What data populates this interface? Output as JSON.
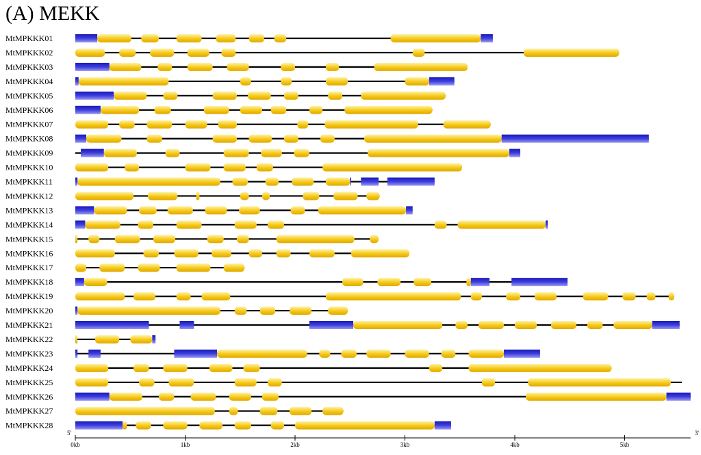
{
  "title": "(A) MEKK",
  "colors": {
    "utr": "#3434d6",
    "cds": "#f5c816",
    "intron": "#000000"
  },
  "axis": {
    "min_kb": 0,
    "max_kb": 5.6,
    "ticks": [
      {
        "value": 0,
        "label": "0kb"
      },
      {
        "value": 1,
        "label": "1kb"
      },
      {
        "value": 2,
        "label": "2kb"
      },
      {
        "value": 3,
        "label": "3kb"
      },
      {
        "value": 4,
        "label": "4kb"
      },
      {
        "value": 5,
        "label": "5kb"
      }
    ],
    "left_end": "5'",
    "right_end": "3'"
  },
  "genes": [
    {
      "name": "MtMPKKK01",
      "end": 3.8,
      "utr": [
        [
          0,
          0.2
        ],
        [
          3.69,
          3.8
        ]
      ],
      "cds": [
        [
          0.2,
          0.51
        ],
        [
          0.6,
          0.76
        ],
        [
          0.92,
          1.15
        ],
        [
          1.28,
          1.46
        ],
        [
          1.58,
          1.72
        ],
        [
          1.81,
          1.92
        ],
        [
          2.87,
          3.69
        ]
      ]
    },
    {
      "name": "MtMPKKK02",
      "end": 4.95,
      "utr": [],
      "cds": [
        [
          0,
          0.27
        ],
        [
          0.4,
          0.55
        ],
        [
          0.68,
          0.9
        ],
        [
          1.02,
          1.22
        ],
        [
          1.33,
          1.46
        ],
        [
          3.07,
          3.18
        ],
        [
          4.08,
          4.95
        ]
      ]
    },
    {
      "name": "MtMPKKK03",
      "end": 3.57,
      "utr": [
        [
          0,
          0.31
        ]
      ],
      "cds": [
        [
          0.31,
          0.6
        ],
        [
          0.75,
          0.88
        ],
        [
          1.02,
          1.25
        ],
        [
          1.38,
          1.58
        ],
        [
          1.87,
          2.0
        ],
        [
          2.28,
          2.4
        ],
        [
          2.72,
          3.57
        ]
      ]
    },
    {
      "name": "MtMPKKK04",
      "end": 3.45,
      "utr": [
        [
          0,
          0.03
        ],
        [
          3.22,
          3.45
        ]
      ],
      "cds": [
        [
          0.03,
          0.85
        ],
        [
          1.5,
          1.6
        ],
        [
          1.87,
          1.97
        ],
        [
          2.28,
          2.48
        ],
        [
          3.0,
          3.22
        ]
      ]
    },
    {
      "name": "MtMPKKK05",
      "end": 3.37,
      "utr": [
        [
          0,
          0.35
        ]
      ],
      "cds": [
        [
          0.35,
          0.65
        ],
        [
          0.8,
          0.93
        ],
        [
          1.25,
          1.47
        ],
        [
          1.57,
          1.78
        ],
        [
          1.9,
          2.03
        ],
        [
          2.3,
          2.43
        ],
        [
          2.6,
          3.37
        ]
      ]
    },
    {
      "name": "MtMPKKK06",
      "end": 3.25,
      "utr": [
        [
          0,
          0.23
        ]
      ],
      "cds": [
        [
          0.23,
          0.58
        ],
        [
          0.72,
          0.87
        ],
        [
          1.17,
          1.4
        ],
        [
          1.5,
          1.7
        ],
        [
          1.78,
          1.92
        ],
        [
          2.13,
          2.25
        ],
        [
          2.45,
          3.25
        ]
      ]
    },
    {
      "name": "MtMPKKK07",
      "end": 3.78,
      "utr": [],
      "cds": [
        [
          0,
          0.3
        ],
        [
          0.4,
          0.54
        ],
        [
          0.65,
          0.88
        ],
        [
          1.0,
          1.2
        ],
        [
          1.3,
          1.47
        ],
        [
          2.02,
          2.12
        ],
        [
          2.27,
          3.12
        ],
        [
          3.35,
          3.78
        ]
      ]
    },
    {
      "name": "MtMPKKK08",
      "end": 5.22,
      "utr": [
        [
          0,
          0.1
        ],
        [
          3.88,
          5.22
        ]
      ],
      "cds": [
        [
          0.1,
          0.42
        ],
        [
          0.65,
          0.79
        ],
        [
          1.25,
          1.47
        ],
        [
          1.58,
          1.79
        ],
        [
          1.9,
          2.03
        ],
        [
          2.23,
          2.36
        ],
        [
          2.63,
          3.88
        ]
      ]
    },
    {
      "name": "MtMPKKK09",
      "end": 4.05,
      "utr": [
        [
          0.05,
          0.26
        ],
        [
          3.95,
          4.05
        ]
      ],
      "cds": [
        [
          0.26,
          0.56
        ],
        [
          0.82,
          0.95
        ],
        [
          1.35,
          1.58
        ],
        [
          1.69,
          1.88
        ],
        [
          1.99,
          2.13
        ],
        [
          2.66,
          3.95
        ]
      ]
    },
    {
      "name": "MtMPKKK10",
      "end": 3.52,
      "utr": [],
      "cds": [
        [
          0,
          0.3
        ],
        [
          0.45,
          0.58
        ],
        [
          1.0,
          1.23
        ],
        [
          1.35,
          1.55
        ],
        [
          1.65,
          1.8
        ],
        [
          2.25,
          3.52
        ]
      ]
    },
    {
      "name": "MtMPKKK11",
      "end": 3.27,
      "utr": [
        [
          0,
          0.02
        ],
        [
          2.5,
          2.51
        ],
        [
          2.6,
          2.76
        ],
        [
          2.84,
          3.27
        ]
      ],
      "cds": [
        [
          0.02,
          1.32
        ],
        [
          1.43,
          1.57
        ],
        [
          1.73,
          1.85
        ],
        [
          1.97,
          2.17
        ],
        [
          2.28,
          2.5
        ]
      ]
    },
    {
      "name": "MtMPKKK12",
      "end": 2.77,
      "utr": [],
      "cds": [
        [
          0,
          0.53
        ],
        [
          0.66,
          0.93
        ],
        [
          1.1,
          1.13
        ],
        [
          1.5,
          1.58
        ],
        [
          1.7,
          1.77
        ],
        [
          2.07,
          2.22
        ],
        [
          2.35,
          2.57
        ],
        [
          2.65,
          2.77
        ]
      ]
    },
    {
      "name": "MtMPKKK13",
      "end": 3.07,
      "utr": [
        [
          0,
          0.17
        ],
        [
          3.01,
          3.07
        ]
      ],
      "cds": [
        [
          0.17,
          0.47
        ],
        [
          0.58,
          0.74
        ],
        [
          0.84,
          1.07
        ],
        [
          1.18,
          1.38
        ],
        [
          1.49,
          1.68
        ],
        [
          1.96,
          2.09
        ],
        [
          2.21,
          3.01
        ]
      ]
    },
    {
      "name": "MtMPKKK14",
      "end": 4.3,
      "utr": [
        [
          0,
          0.09
        ],
        [
          4.28,
          4.3
        ]
      ],
      "cds": [
        [
          0.09,
          0.41
        ],
        [
          0.57,
          0.71
        ],
        [
          0.92,
          1.15
        ],
        [
          1.45,
          1.65
        ],
        [
          1.75,
          1.9
        ],
        [
          3.27,
          3.38
        ],
        [
          3.48,
          4.28
        ]
      ]
    },
    {
      "name": "MtMPKKK15",
      "end": 2.76,
      "utr": [],
      "cds": [
        [
          0,
          0.02
        ],
        [
          0.12,
          0.22
        ],
        [
          0.36,
          0.59
        ],
        [
          0.71,
          0.91
        ],
        [
          1.2,
          1.35
        ],
        [
          1.47,
          1.58
        ],
        [
          1.83,
          2.54
        ],
        [
          2.68,
          2.76
        ]
      ]
    },
    {
      "name": "MtMPKKK16",
      "end": 3.04,
      "utr": [],
      "cds": [
        [
          0,
          0.36
        ],
        [
          0.62,
          0.76
        ],
        [
          0.9,
          1.12
        ],
        [
          1.24,
          1.42
        ],
        [
          1.58,
          1.7
        ],
        [
          1.83,
          1.96
        ],
        [
          2.13,
          2.36
        ],
        [
          2.51,
          3.04
        ]
      ]
    },
    {
      "name": "MtMPKKK17",
      "end": 1.54,
      "utr": [],
      "cds": [
        [
          0,
          0.1
        ],
        [
          0.22,
          0.45
        ],
        [
          0.57,
          0.77
        ],
        [
          0.92,
          1.23
        ],
        [
          1.35,
          1.54
        ]
      ]
    },
    {
      "name": "MtMPKKK18",
      "end": 4.48,
      "utr": [
        [
          0,
          0.08
        ],
        [
          3.6,
          3.77
        ],
        [
          3.97,
          4.48
        ]
      ],
      "cds": [
        [
          0.08,
          0.29
        ],
        [
          2.43,
          2.62
        ],
        [
          2.75,
          2.96
        ],
        [
          3.08,
          3.24
        ],
        [
          3.56,
          3.6
        ]
      ]
    },
    {
      "name": "MtMPKKK19",
      "end": 5.45,
      "utr": [],
      "cds": [
        [
          0,
          0.45
        ],
        [
          0.53,
          0.73
        ],
        [
          0.92,
          1.05
        ],
        [
          1.15,
          1.41
        ],
        [
          2.28,
          3.51
        ],
        [
          3.6,
          3.7
        ],
        [
          3.92,
          4.05
        ],
        [
          4.18,
          4.38
        ],
        [
          4.62,
          4.85
        ],
        [
          4.98,
          5.1
        ],
        [
          5.2,
          5.28
        ],
        [
          5.4,
          5.45
        ]
      ]
    },
    {
      "name": "MtMPKKK20",
      "end": 2.48,
      "utr": [
        [
          0,
          0.02
        ]
      ],
      "cds": [
        [
          0.02,
          1.32
        ],
        [
          1.45,
          1.56
        ],
        [
          1.68,
          1.82
        ],
        [
          1.95,
          2.15
        ],
        [
          2.3,
          2.48
        ]
      ]
    },
    {
      "name": "MtMPKKK21",
      "end": 5.5,
      "utr": [
        [
          0,
          0.67
        ],
        [
          0.95,
          1.08
        ],
        [
          2.13,
          2.53
        ],
        [
          5.25,
          5.5
        ]
      ],
      "cds": [
        [
          2.53,
          3.34
        ],
        [
          3.46,
          3.57
        ],
        [
          3.67,
          3.9
        ],
        [
          4.0,
          4.2
        ],
        [
          4.33,
          4.56
        ],
        [
          4.66,
          4.8
        ],
        [
          4.9,
          5.25
        ]
      ]
    },
    {
      "name": "MtMPKKK22",
      "end": 0.73,
      "utr": [
        [
          0.7,
          0.73
        ]
      ],
      "cds": [
        [
          0,
          0.02
        ],
        [
          0.18,
          0.4
        ],
        [
          0.5,
          0.7
        ]
      ]
    },
    {
      "name": "MtMPKKK23",
      "end": 4.23,
      "utr": [
        [
          0,
          0.02
        ],
        [
          0.12,
          0.23
        ],
        [
          0.9,
          1.29
        ],
        [
          3.9,
          4.23
        ]
      ],
      "cds": [
        [
          1.29,
          2.11
        ],
        [
          2.22,
          2.32
        ],
        [
          2.42,
          2.56
        ],
        [
          2.65,
          2.87
        ],
        [
          3.0,
          3.22
        ],
        [
          3.33,
          3.46
        ],
        [
          3.58,
          3.9
        ]
      ]
    },
    {
      "name": "MtMPKKK24",
      "end": 4.88,
      "utr": [],
      "cds": [
        [
          0,
          0.3
        ],
        [
          0.53,
          0.67
        ],
        [
          0.8,
          1.02
        ],
        [
          1.22,
          1.43
        ],
        [
          1.53,
          1.68
        ],
        [
          3.22,
          3.34
        ],
        [
          3.58,
          4.88
        ]
      ]
    },
    {
      "name": "MtMPKKK25",
      "end": 5.52,
      "utr": [],
      "cds": [
        [
          0,
          0.3
        ],
        [
          0.58,
          0.72
        ],
        [
          0.85,
          1.08
        ],
        [
          1.45,
          1.65
        ],
        [
          1.75,
          1.88
        ],
        [
          3.7,
          3.82
        ],
        [
          4.12,
          5.42
        ]
      ]
    },
    {
      "name": "MtMPKKK26",
      "end": 5.6,
      "utr": [
        [
          0,
          0.31
        ],
        [
          5.38,
          5.6
        ]
      ],
      "cds": [
        [
          0.31,
          0.61
        ],
        [
          0.76,
          0.9
        ],
        [
          1.05,
          1.28
        ],
        [
          1.4,
          1.6
        ],
        [
          1.7,
          1.85
        ],
        [
          4.1,
          5.38
        ]
      ]
    },
    {
      "name": "MtMPKKK27",
      "end": 2.44,
      "utr": [],
      "cds": [
        [
          0,
          1.27
        ],
        [
          1.4,
          1.48
        ],
        [
          1.68,
          1.84
        ],
        [
          1.95,
          2.15
        ],
        [
          2.25,
          2.44
        ]
      ]
    },
    {
      "name": "MtMPKKK28",
      "end": 3.42,
      "utr": [
        [
          0,
          0.43
        ],
        [
          3.27,
          3.42
        ]
      ],
      "cds": [
        [
          0.43,
          0.47
        ],
        [
          0.55,
          0.69
        ],
        [
          0.8,
          1.02
        ],
        [
          1.13,
          1.34
        ],
        [
          1.45,
          1.6
        ],
        [
          1.78,
          1.9
        ],
        [
          2.0,
          3.27
        ]
      ]
    }
  ]
}
